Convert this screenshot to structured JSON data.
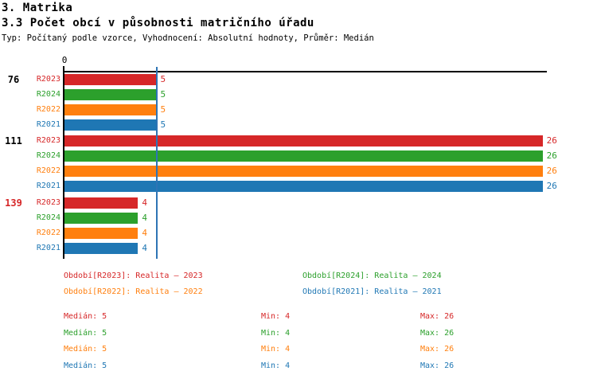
{
  "header": {
    "title": "3. Matrika",
    "subtitle": "3.3 Počet obcí v působnosti matričního úřadu",
    "meta": "Typ: Počítaný podle vzorce, Vyhodnocení: Absolutní hodnoty, Průměr: Medián"
  },
  "colors": {
    "R2023": "#d62728",
    "R2024": "#2ca02c",
    "R2022": "#ff7f0e",
    "R2021": "#1f77b4",
    "median_line": "#2e74b5",
    "axis": "#000000",
    "highlight_group": "#d62728",
    "text": "#000000"
  },
  "chart_data": {
    "type": "bar",
    "orientation": "horizontal",
    "title": "3.3 Počet obcí v působnosti matričního úřadu",
    "x_axis": {
      "zero_label": "0",
      "min": 0,
      "max": 26
    },
    "median_line_value": 5,
    "series_order": [
      "R2023",
      "R2024",
      "R2022",
      "R2021"
    ],
    "groups": [
      {
        "label": "76",
        "highlighted": false,
        "bars": [
          {
            "series": "R2023",
            "value": 5
          },
          {
            "series": "R2024",
            "value": 5
          },
          {
            "series": "R2022",
            "value": 5
          },
          {
            "series": "R2021",
            "value": 5
          }
        ]
      },
      {
        "label": "111",
        "highlighted": false,
        "bars": [
          {
            "series": "R2023",
            "value": 26
          },
          {
            "series": "R2024",
            "value": 26
          },
          {
            "series": "R2022",
            "value": 26
          },
          {
            "series": "R2021",
            "value": 26
          }
        ]
      },
      {
        "label": "139",
        "highlighted": true,
        "bars": [
          {
            "series": "R2023",
            "value": 4
          },
          {
            "series": "R2024",
            "value": 4
          },
          {
            "series": "R2022",
            "value": 4
          },
          {
            "series": "R2021",
            "value": 4
          }
        ]
      }
    ]
  },
  "legend": {
    "items": [
      {
        "label": "Období[R2023]: Realita – 2023",
        "series": "R2023",
        "row": 0,
        "col": 0
      },
      {
        "label": "Období[R2024]: Realita – 2024",
        "series": "R2024",
        "row": 0,
        "col": 1
      },
      {
        "label": "Období[R2022]: Realita – 2022",
        "series": "R2022",
        "row": 1,
        "col": 0
      },
      {
        "label": "Období[R2021]: Realita – 2021",
        "series": "R2021",
        "row": 1,
        "col": 1
      }
    ]
  },
  "stats": {
    "rows": [
      {
        "series": "R2023",
        "median": "Medián: 5",
        "min": "Min: 4",
        "max": "Max: 26"
      },
      {
        "series": "R2024",
        "median": "Medián: 5",
        "min": "Min: 4",
        "max": "Max: 26"
      },
      {
        "series": "R2022",
        "median": "Medián: 5",
        "min": "Min: 4",
        "max": "Max: 26"
      },
      {
        "series": "R2021",
        "median": "Medián: 5",
        "min": "Min: 4",
        "max": "Max: 26"
      }
    ]
  }
}
